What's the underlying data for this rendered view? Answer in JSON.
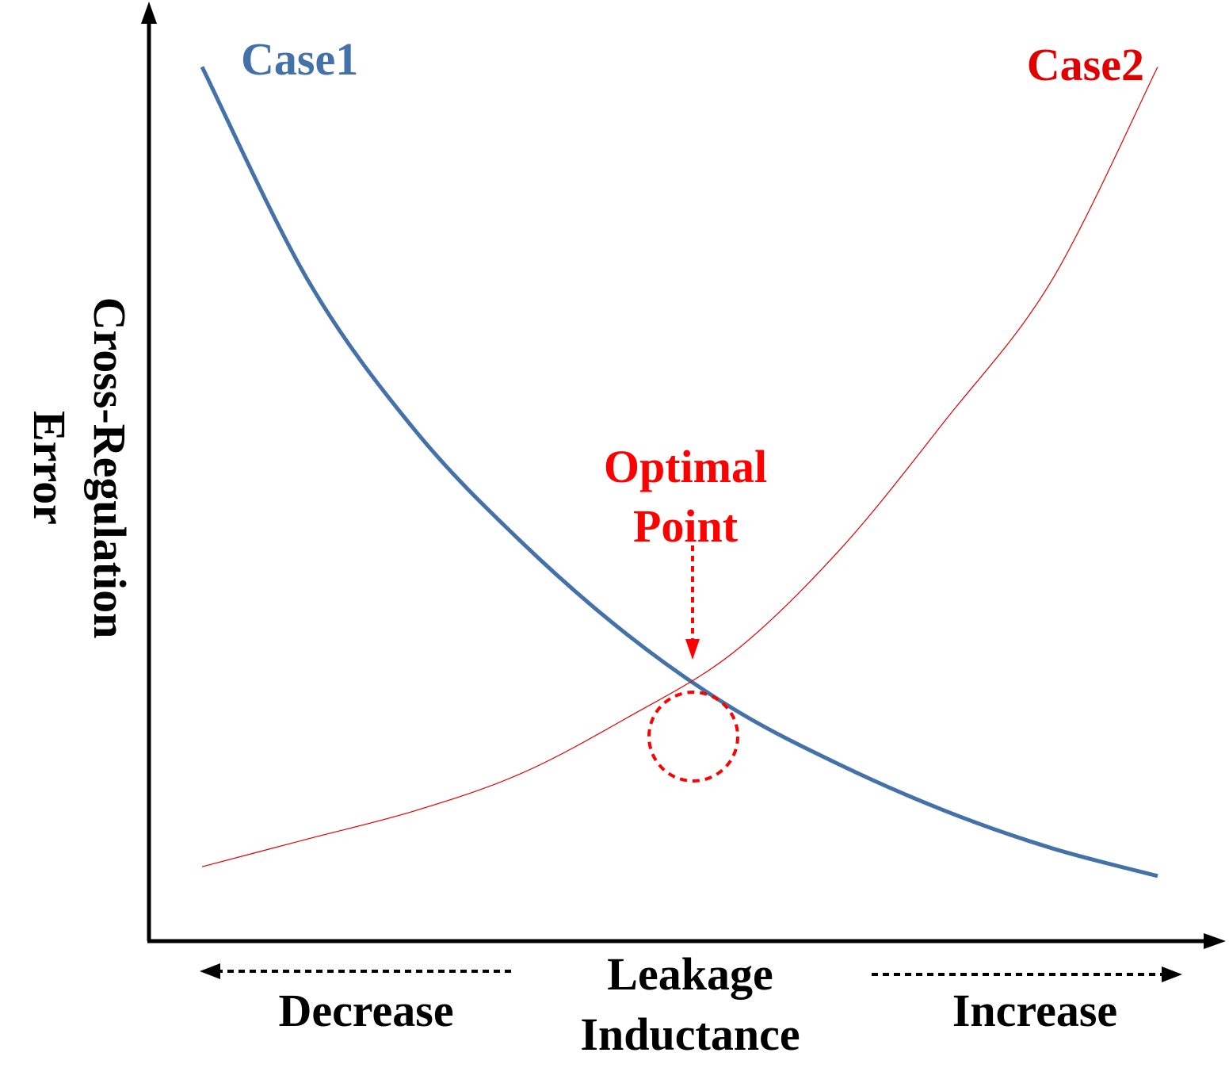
{
  "chart_data": {
    "type": "line",
    "title": "",
    "xlabel": "Leakage Inductance",
    "ylabel": "Cross-Regulation Error",
    "x_direction_labels": {
      "left": "Decrease",
      "right": "Increase"
    },
    "x": [
      0.05,
      0.15,
      0.25,
      0.35,
      0.45,
      0.55,
      0.65,
      0.75,
      0.85,
      0.95
    ],
    "series": [
      {
        "name": "Case1",
        "color": "#4472A8",
        "values": [
          0.94,
          0.71,
          0.55,
          0.43,
          0.33,
          0.25,
          0.19,
          0.14,
          0.1,
          0.07
        ]
      },
      {
        "name": "Case2",
        "color": "#E00000",
        "values": [
          0.08,
          0.11,
          0.14,
          0.18,
          0.24,
          0.31,
          0.42,
          0.56,
          0.71,
          0.94
        ]
      }
    ],
    "annotations": [
      {
        "text_lines": [
          "Optimal",
          "Point"
        ],
        "color": "#FF0000",
        "target": "intersection"
      }
    ],
    "grid": false,
    "legend": "none"
  }
}
